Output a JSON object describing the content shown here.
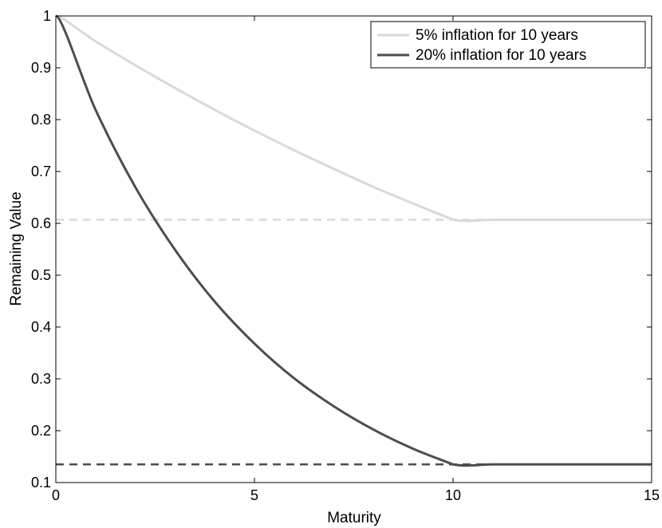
{
  "chart_data": {
    "type": "line",
    "title": "",
    "xlabel": "Maturity",
    "ylabel": "Remaining Value",
    "xlim": [
      0,
      15
    ],
    "ylim": [
      0.1,
      1
    ],
    "xticks": [
      0,
      5,
      10,
      15
    ],
    "yticks": [
      0.1,
      0.2,
      0.3,
      0.4,
      0.5,
      0.6,
      0.7,
      0.8,
      0.9,
      1
    ],
    "x_tick_labels": [
      "0",
      "5",
      "10",
      "15"
    ],
    "y_tick_labels": [
      "0.1",
      "0.2",
      "0.3",
      "0.4",
      "0.5",
      "0.6",
      "0.7",
      "0.8",
      "0.9",
      "1"
    ],
    "grid": false,
    "legend_position": "top-right",
    "series": [
      {
        "name": "5% inflation for 10 years",
        "color": "#d9d9d9",
        "style": "solid",
        "x": [
          0,
          1,
          2,
          3,
          4,
          5,
          6,
          7,
          8,
          9,
          10,
          11,
          12,
          13,
          14,
          15
        ],
        "y": [
          1.0,
          0.951,
          0.905,
          0.861,
          0.819,
          0.779,
          0.741,
          0.705,
          0.67,
          0.638,
          0.607,
          0.607,
          0.607,
          0.607,
          0.607,
          0.607
        ]
      },
      {
        "name": "20% inflation for 10 years",
        "color": "#4d4d4d",
        "style": "solid",
        "x": [
          0,
          1,
          2,
          3,
          4,
          5,
          6,
          7,
          8,
          9,
          10,
          11,
          12,
          13,
          14,
          15
        ],
        "y": [
          1.0,
          0.819,
          0.67,
          0.549,
          0.449,
          0.368,
          0.301,
          0.247,
          0.202,
          0.165,
          0.135,
          0.135,
          0.135,
          0.135,
          0.135,
          0.135
        ]
      }
    ],
    "reference_lines": [
      {
        "y": 0.607,
        "color": "#d9d9d9",
        "style": "dashed",
        "x_range": [
          0,
          15
        ]
      },
      {
        "y": 0.135,
        "color": "#4d4d4d",
        "style": "dashed",
        "x_range": [
          0,
          15
        ]
      }
    ]
  }
}
